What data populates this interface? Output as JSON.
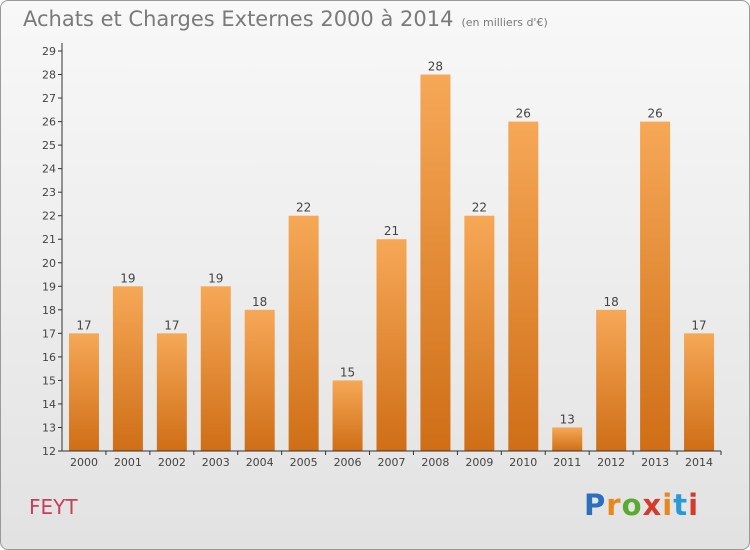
{
  "header": {
    "title": "Achats et Charges Externes 2000 à 2014",
    "subtitle": "(en milliers d'€)"
  },
  "footer": {
    "commune": "FEYT",
    "logo_letters": [
      "P",
      "r",
      "o",
      "x",
      "i",
      "t",
      "i"
    ],
    "logo_colors": [
      "#2a6fc0",
      "#e8871e",
      "#5aaa32",
      "#d63a2a",
      "#e8871e",
      "#2a9ad6",
      "#d63a2a"
    ]
  },
  "colors": {
    "bar_light": "#f6a857",
    "bar_dark": "#cf6e17",
    "axis": "#333333",
    "label": "#444444"
  },
  "chart_data": {
    "type": "bar",
    "categories": [
      "2000",
      "2001",
      "2002",
      "2003",
      "2004",
      "2005",
      "2006",
      "2007",
      "2008",
      "2009",
      "2010",
      "2011",
      "2012",
      "2013",
      "2014"
    ],
    "values": [
      17,
      19,
      17,
      19,
      18,
      22,
      15,
      21,
      28,
      22,
      26,
      13,
      18,
      26,
      17
    ],
    "ylim": [
      12,
      29
    ],
    "yticks": [
      12,
      13,
      14,
      15,
      16,
      17,
      18,
      19,
      20,
      21,
      22,
      23,
      24,
      25,
      26,
      27,
      28,
      29
    ],
    "data_labels": true,
    "grid": false
  }
}
